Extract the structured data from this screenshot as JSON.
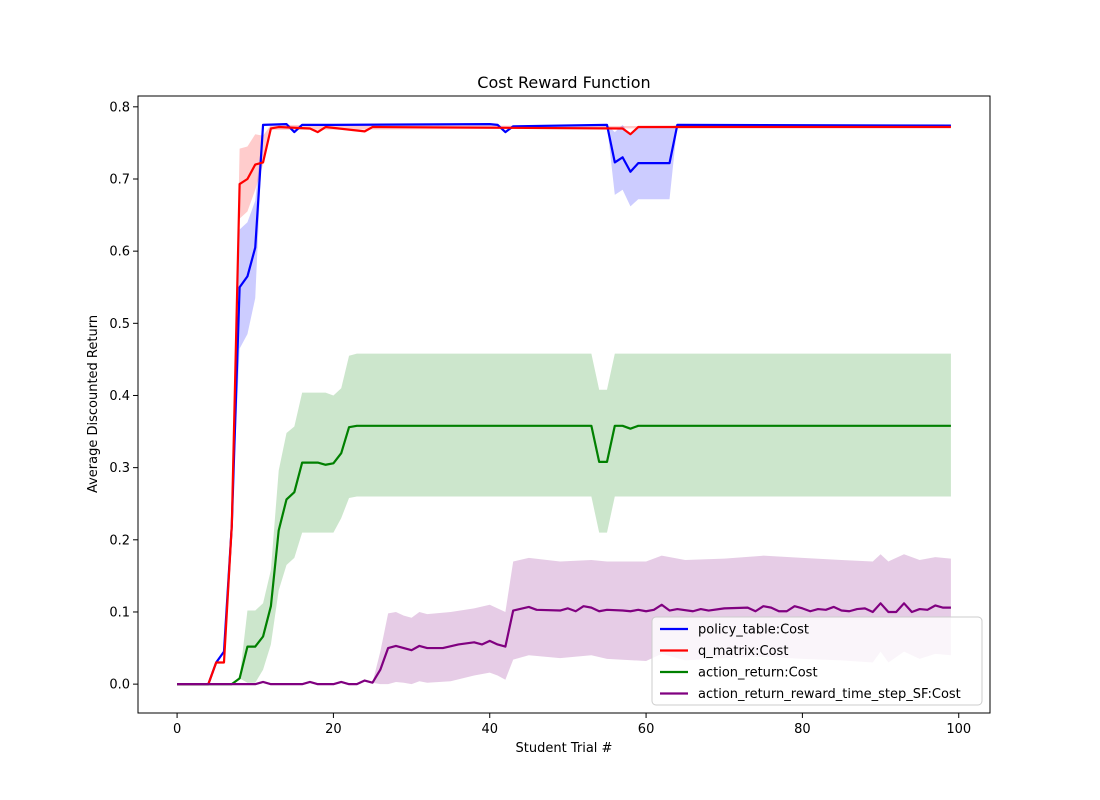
{
  "chart_data": {
    "type": "line",
    "title": "Cost Reward Function",
    "xlabel": "Student Trial #",
    "ylabel": "Average Discounted Return",
    "xlim": [
      -5,
      104
    ],
    "ylim": [
      -0.04,
      0.815
    ],
    "xticks": [
      0,
      20,
      40,
      60,
      80,
      100
    ],
    "yticks": [
      0.0,
      0.1,
      0.2,
      0.3,
      0.4,
      0.5,
      0.6,
      0.7,
      0.8
    ],
    "xtick_labels": [
      "0",
      "20",
      "40",
      "60",
      "80",
      "100"
    ],
    "ytick_labels": [
      "0.0",
      "0.1",
      "0.2",
      "0.3",
      "0.4",
      "0.5",
      "0.6",
      "0.7",
      "0.8"
    ],
    "grid": false,
    "legend_position": "lower-right",
    "series": [
      {
        "name": "policy_table:Cost",
        "color": "#0000ff",
        "band_color": "#0000ff",
        "points": [
          [
            0,
            0
          ],
          [
            4,
            0
          ],
          [
            5,
            0.03
          ],
          [
            6,
            0.045
          ],
          [
            7,
            0.22
          ],
          [
            8,
            0.55
          ],
          [
            9,
            0.565
          ],
          [
            10,
            0.605
          ],
          [
            11,
            0.775
          ],
          [
            14,
            0.776
          ],
          [
            15,
            0.765
          ],
          [
            16,
            0.775
          ],
          [
            20,
            0.775
          ],
          [
            40,
            0.776
          ],
          [
            41,
            0.775
          ],
          [
            42,
            0.765
          ],
          [
            43,
            0.773
          ],
          [
            55,
            0.775
          ],
          [
            56,
            0.723
          ],
          [
            57,
            0.73
          ],
          [
            58,
            0.71
          ],
          [
            59,
            0.722
          ],
          [
            63,
            0.722
          ],
          [
            64,
            0.775
          ],
          [
            99,
            0.774
          ]
        ],
        "band": [
          [
            0,
            0,
            0
          ],
          [
            4,
            0,
            0
          ],
          [
            5,
            0.03,
            0.03
          ],
          [
            6,
            0.045,
            0.045
          ],
          [
            7,
            0.22,
            0.22
          ],
          [
            8,
            0.465,
            0.63
          ],
          [
            9,
            0.485,
            0.64
          ],
          [
            10,
            0.535,
            0.67
          ],
          [
            11,
            0.775,
            0.775
          ],
          [
            55,
            0.775,
            0.775
          ],
          [
            56,
            0.678,
            0.765
          ],
          [
            57,
            0.685,
            0.775
          ],
          [
            58,
            0.662,
            0.76
          ],
          [
            59,
            0.672,
            0.772
          ],
          [
            63,
            0.672,
            0.772
          ],
          [
            64,
            0.775,
            0.775
          ],
          [
            99,
            0.774,
            0.774
          ]
        ]
      },
      {
        "name": "q_matrix:Cost",
        "color": "#ff0000",
        "band_color": "#ff0000",
        "points": [
          [
            0,
            0
          ],
          [
            4,
            0
          ],
          [
            5,
            0.03
          ],
          [
            6,
            0.03
          ],
          [
            7,
            0.22
          ],
          [
            8,
            0.693
          ],
          [
            9,
            0.7
          ],
          [
            10,
            0.72
          ],
          [
            11,
            0.723
          ],
          [
            12,
            0.77
          ],
          [
            13,
            0.772
          ],
          [
            17,
            0.77
          ],
          [
            18,
            0.765
          ],
          [
            19,
            0.772
          ],
          [
            24,
            0.766
          ],
          [
            25,
            0.772
          ],
          [
            57,
            0.77
          ],
          [
            58,
            0.762
          ],
          [
            59,
            0.772
          ],
          [
            99,
            0.772
          ]
        ],
        "band": [
          [
            0,
            0,
            0
          ],
          [
            4,
            0,
            0
          ],
          [
            5,
            0.03,
            0.03
          ],
          [
            6,
            0.03,
            0.03
          ],
          [
            7,
            0.22,
            0.22
          ],
          [
            8,
            0.645,
            0.742
          ],
          [
            9,
            0.655,
            0.745
          ],
          [
            10,
            0.685,
            0.762
          ],
          [
            11,
            0.72,
            0.76
          ],
          [
            12,
            0.768,
            0.775
          ],
          [
            99,
            0.772,
            0.772
          ]
        ]
      },
      {
        "name": "action_return:Cost",
        "color": "#008000",
        "band_color": "#008000",
        "points": [
          [
            0,
            0
          ],
          [
            7,
            0
          ],
          [
            8,
            0.008
          ],
          [
            9,
            0.052
          ],
          [
            10,
            0.052
          ],
          [
            11,
            0.066
          ],
          [
            12,
            0.108
          ],
          [
            13,
            0.213
          ],
          [
            14,
            0.256
          ],
          [
            15,
            0.266
          ],
          [
            16,
            0.307
          ],
          [
            18,
            0.307
          ],
          [
            19,
            0.304
          ],
          [
            20,
            0.306
          ],
          [
            21,
            0.32
          ],
          [
            22,
            0.356
          ],
          [
            23,
            0.358
          ],
          [
            53,
            0.358
          ],
          [
            54,
            0.308
          ],
          [
            55,
            0.308
          ],
          [
            56,
            0.358
          ],
          [
            57,
            0.358
          ],
          [
            58,
            0.354
          ],
          [
            59,
            0.358
          ],
          [
            99,
            0.358
          ]
        ],
        "band": [
          [
            0,
            0,
            0
          ],
          [
            7,
            0,
            0
          ],
          [
            8,
            0.008,
            0.008
          ],
          [
            9,
            0.002,
            0.102
          ],
          [
            10,
            0.002,
            0.102
          ],
          [
            11,
            0.02,
            0.112
          ],
          [
            12,
            0.055,
            0.158
          ],
          [
            13,
            0.13,
            0.296
          ],
          [
            14,
            0.165,
            0.348
          ],
          [
            15,
            0.175,
            0.357
          ],
          [
            16,
            0.21,
            0.404
          ],
          [
            19,
            0.21,
            0.404
          ],
          [
            20,
            0.21,
            0.4
          ],
          [
            21,
            0.23,
            0.41
          ],
          [
            22,
            0.258,
            0.455
          ],
          [
            23,
            0.26,
            0.458
          ],
          [
            53,
            0.26,
            0.458
          ],
          [
            54,
            0.21,
            0.408
          ],
          [
            55,
            0.21,
            0.408
          ],
          [
            56,
            0.26,
            0.458
          ],
          [
            99,
            0.26,
            0.458
          ]
        ]
      },
      {
        "name": "action_return_reward_time_step_SF:Cost",
        "color": "#800080",
        "band_color": "#800080",
        "points": [
          [
            0,
            0
          ],
          [
            10,
            0
          ],
          [
            11,
            0.003
          ],
          [
            12,
            0
          ],
          [
            16,
            0
          ],
          [
            17,
            0.003
          ],
          [
            18,
            0
          ],
          [
            20,
            0
          ],
          [
            21,
            0.003
          ],
          [
            22,
            0
          ],
          [
            23,
            0
          ],
          [
            24,
            0.005
          ],
          [
            25,
            0.002
          ],
          [
            26,
            0.02
          ],
          [
            27,
            0.05
          ],
          [
            28,
            0.053
          ],
          [
            29,
            0.05
          ],
          [
            30,
            0.047
          ],
          [
            31,
            0.053
          ],
          [
            32,
            0.05
          ],
          [
            34,
            0.05
          ],
          [
            36,
            0.055
          ],
          [
            38,
            0.058
          ],
          [
            39,
            0.055
          ],
          [
            40,
            0.06
          ],
          [
            41,
            0.055
          ],
          [
            42,
            0.052
          ],
          [
            43,
            0.102
          ],
          [
            45,
            0.107
          ],
          [
            46,
            0.103
          ],
          [
            49,
            0.102
          ],
          [
            50,
            0.105
          ],
          [
            51,
            0.101
          ],
          [
            52,
            0.108
          ],
          [
            53,
            0.106
          ],
          [
            54,
            0.101
          ],
          [
            55,
            0.103
          ],
          [
            57,
            0.102
          ],
          [
            58,
            0.101
          ],
          [
            59,
            0.103
          ],
          [
            60,
            0.101
          ],
          [
            61,
            0.103
          ],
          [
            62,
            0.11
          ],
          [
            63,
            0.102
          ],
          [
            64,
            0.104
          ],
          [
            66,
            0.101
          ],
          [
            67,
            0.104
          ],
          [
            68,
            0.102
          ],
          [
            70,
            0.105
          ],
          [
            73,
            0.106
          ],
          [
            74,
            0.101
          ],
          [
            75,
            0.108
          ],
          [
            76,
            0.106
          ],
          [
            77,
            0.101
          ],
          [
            78,
            0.101
          ],
          [
            79,
            0.108
          ],
          [
            80,
            0.105
          ],
          [
            81,
            0.101
          ],
          [
            82,
            0.104
          ],
          [
            83,
            0.103
          ],
          [
            84,
            0.107
          ],
          [
            85,
            0.102
          ],
          [
            86,
            0.101
          ],
          [
            87,
            0.104
          ],
          [
            88,
            0.105
          ],
          [
            89,
            0.1
          ],
          [
            90,
            0.112
          ],
          [
            91,
            0.1
          ],
          [
            92,
            0.1
          ],
          [
            93,
            0.112
          ],
          [
            94,
            0.1
          ],
          [
            95,
            0.104
          ],
          [
            96,
            0.103
          ],
          [
            97,
            0.109
          ],
          [
            98,
            0.106
          ],
          [
            99,
            0.106
          ]
        ],
        "band": [
          [
            0,
            0,
            0
          ],
          [
            25,
            0.002,
            0.002
          ],
          [
            26,
            0.0,
            0.045
          ],
          [
            27,
            0.0,
            0.098
          ],
          [
            28,
            0.003,
            0.1
          ],
          [
            29,
            0.002,
            0.095
          ],
          [
            30,
            0.0,
            0.092
          ],
          [
            31,
            0.004,
            0.1
          ],
          [
            32,
            0.002,
            0.097
          ],
          [
            35,
            0.004,
            0.1
          ],
          [
            38,
            0.012,
            0.105
          ],
          [
            40,
            0.016,
            0.11
          ],
          [
            41,
            0.012,
            0.105
          ],
          [
            42,
            0.006,
            0.1
          ],
          [
            43,
            0.034,
            0.17
          ],
          [
            45,
            0.04,
            0.175
          ],
          [
            49,
            0.036,
            0.17
          ],
          [
            53,
            0.04,
            0.172
          ],
          [
            55,
            0.035,
            0.17
          ],
          [
            60,
            0.032,
            0.17
          ],
          [
            62,
            0.042,
            0.178
          ],
          [
            65,
            0.033,
            0.172
          ],
          [
            70,
            0.036,
            0.174
          ],
          [
            75,
            0.038,
            0.178
          ],
          [
            80,
            0.035,
            0.175
          ],
          [
            85,
            0.033,
            0.172
          ],
          [
            89,
            0.03,
            0.17
          ],
          [
            90,
            0.045,
            0.18
          ],
          [
            91,
            0.03,
            0.17
          ],
          [
            93,
            0.045,
            0.18
          ],
          [
            95,
            0.035,
            0.172
          ],
          [
            97,
            0.042,
            0.176
          ],
          [
            99,
            0.04,
            0.174
          ]
        ]
      }
    ]
  }
}
